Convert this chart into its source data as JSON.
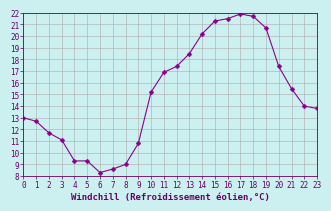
{
  "x": [
    0,
    1,
    2,
    3,
    4,
    5,
    6,
    7,
    8,
    9,
    10,
    11,
    12,
    13,
    14,
    15,
    16,
    17,
    18,
    19,
    20,
    21,
    22,
    23
  ],
  "y": [
    13,
    12.7,
    11.7,
    11.1,
    9.3,
    9.3,
    8.3,
    8.6,
    9.0,
    10.8,
    15.2,
    16.9,
    17.4,
    18.5,
    20.2,
    21.3,
    21.5,
    21.9,
    21.7,
    20.7,
    17.4,
    15.5,
    14.0,
    13.8
  ],
  "line_color": "#8b008b",
  "marker": "D",
  "marker_size": 2.5,
  "bg_color": "#ccf0f0",
  "grid_color": "#aaaaaa",
  "xlabel": "Windchill (Refroidissement éolien,°C)",
  "xlim": [
    0,
    23
  ],
  "ylim": [
    8,
    22
  ],
  "yticks": [
    8,
    9,
    10,
    11,
    12,
    13,
    14,
    15,
    16,
    17,
    18,
    19,
    20,
    21,
    22
  ],
  "xticks": [
    0,
    1,
    2,
    3,
    4,
    5,
    6,
    7,
    8,
    9,
    10,
    11,
    12,
    13,
    14,
    15,
    16,
    17,
    18,
    19,
    20,
    21,
    22,
    23
  ],
  "tick_color": "#660066",
  "label_fontsize": 6.5,
  "tick_fontsize": 5.5
}
